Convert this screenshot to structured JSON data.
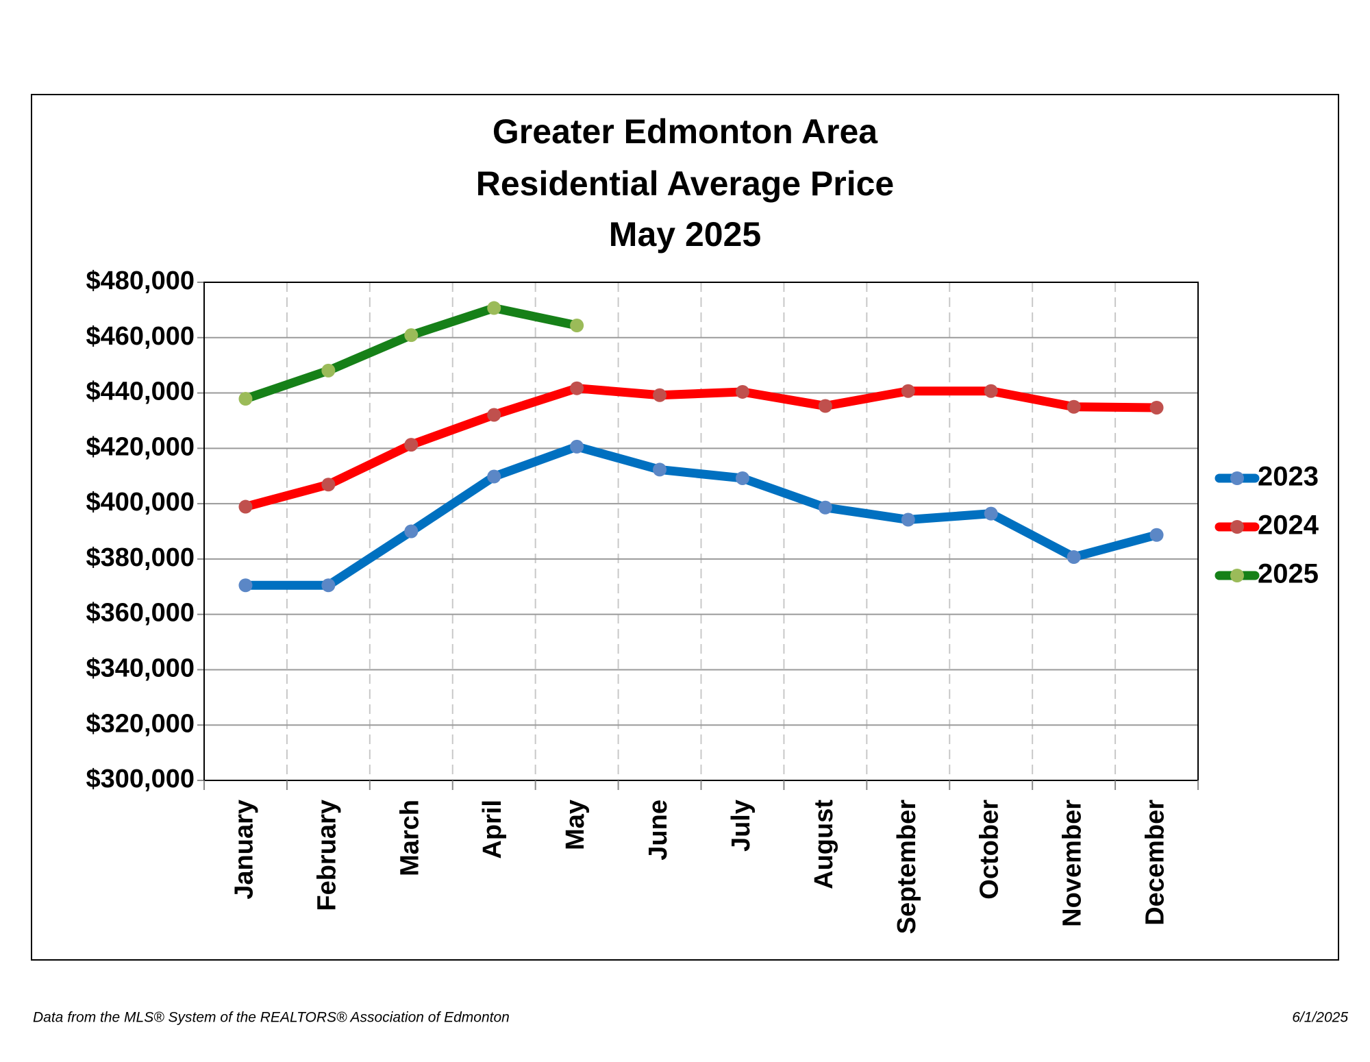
{
  "chart_data": {
    "type": "line",
    "title": [
      "Greater Edmonton Area",
      "Residential Average Price",
      "May 2025"
    ],
    "categories": [
      "January",
      "February",
      "March",
      "April",
      "May",
      "June",
      "July",
      "August",
      "September",
      "October",
      "November",
      "December"
    ],
    "series": [
      {
        "name": "2023",
        "color": "#0070c0",
        "marker_color": "#5b87c6",
        "values": [
          370500,
          370500,
          390000,
          409800,
          420600,
          412300,
          409200,
          398600,
          394200,
          396400,
          380700,
          388700
        ]
      },
      {
        "name": "2024",
        "color": "#ff0000",
        "marker_color": "#c0504d",
        "values": [
          398900,
          406900,
          421300,
          432100,
          441700,
          439200,
          440400,
          435300,
          440700,
          440700,
          435000,
          434700
        ]
      },
      {
        "name": "2025",
        "color": "#168018",
        "marker_color": "#9bbb59",
        "values": [
          437900,
          448100,
          460900,
          470700,
          464400,
          null,
          null,
          null,
          null,
          null,
          null,
          null
        ]
      }
    ],
    "ylim": [
      300000,
      480000
    ],
    "yticks": [
      {
        "value": 300000,
        "label": "$300,000"
      },
      {
        "value": 320000,
        "label": "$320,000"
      },
      {
        "value": 340000,
        "label": "$340,000"
      },
      {
        "value": 360000,
        "label": "$360,000"
      },
      {
        "value": 380000,
        "label": "$380,000"
      },
      {
        "value": 400000,
        "label": "$400,000"
      },
      {
        "value": 420000,
        "label": "$420,000"
      },
      {
        "value": 440000,
        "label": "$440,000"
      },
      {
        "value": 460000,
        "label": "$460,000"
      },
      {
        "value": 480000,
        "label": "$480,000"
      }
    ],
    "grid": true,
    "legend": "right",
    "footer": {
      "source": "Data from the MLS® System of the REALTORS® Association of Edmonton",
      "date": "6/1/2025"
    }
  }
}
